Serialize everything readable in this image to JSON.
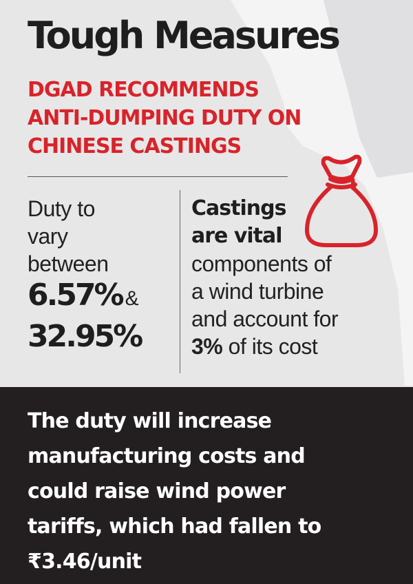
{
  "title": "Tough Measures",
  "subtitle": {
    "lines": [
      "DGAD RECOMMENDS",
      "ANTI-DUMPING DUTY ON",
      "CHINESE CASTINGS"
    ]
  },
  "left": {
    "lines": [
      "Duty to",
      "vary",
      "between"
    ],
    "pct_low": "6.57%",
    "amp": "&",
    "pct_high": "32.95%"
  },
  "right": {
    "bold_lines": [
      "Castings",
      "are vital"
    ],
    "lines": [
      "components of",
      "a wind turbine",
      "and account for"
    ],
    "last_bold": "3%",
    "last_rest": " of its cost"
  },
  "icons": {
    "bag": "money-bag-icon",
    "hand": "hand-icon"
  },
  "colors": {
    "accent": "#d8232a",
    "background": "#e7e7e8",
    "panel": "#231f20"
  },
  "bottom": {
    "lines": [
      "The duty will increase",
      "manufacturing costs and",
      "could raise wind power",
      "tariffs, which had fallen to",
      "₹3.46/unit"
    ]
  }
}
